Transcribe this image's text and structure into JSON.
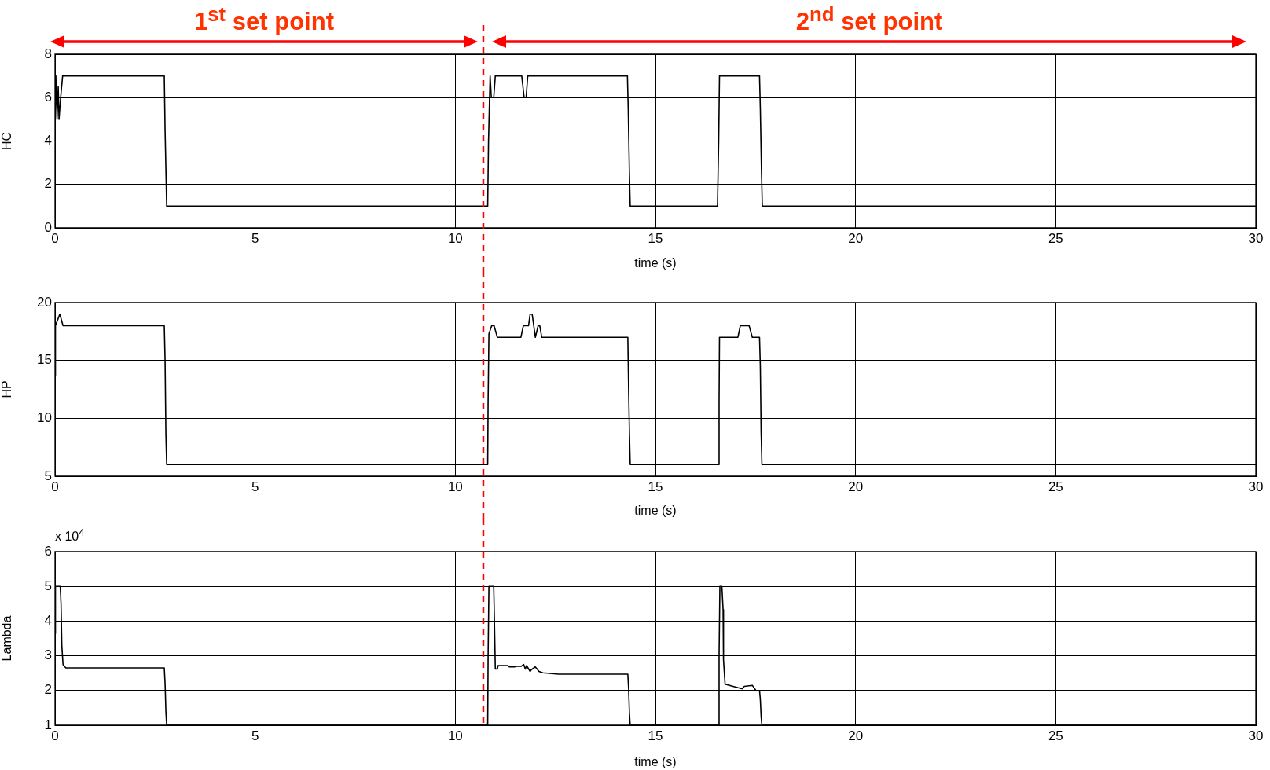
{
  "chart_data": [
    {
      "type": "line",
      "ylabel": "HC",
      "xlabel": "time (s)",
      "xlim": [
        0,
        30
      ],
      "xticks": [
        0,
        5,
        10,
        15,
        20,
        25,
        30
      ],
      "ylim": [
        0,
        8
      ],
      "yticks": [
        0,
        2,
        4,
        6,
        8
      ],
      "grid": true,
      "legend": false,
      "marker": "none",
      "line_style": "solid",
      "annotations": [
        "1$^{st}$ set point",
        "2$^{nd}$ set point"
      ],
      "ref_lines": [
        {
          "axis": "x",
          "value": 10.7,
          "color": "#ff0000",
          "line_style": "dashed"
        }
      ],
      "series": [
        {
          "color": "#000000",
          "x": [
            0,
            0.02,
            0.05,
            0.08,
            0.1,
            0.14,
            0.19,
            2.73,
            2.75,
            2.79,
            10.81,
            10.83,
            10.87,
            10.9,
            10.96,
            11.0,
            11.66,
            11.72,
            11.77,
            11.81,
            14.3,
            14.32,
            14.35,
            14.37,
            16.55,
            16.58,
            16.6,
            17.6,
            17.62,
            17.65,
            17.67,
            30
          ],
          "values": [
            5,
            7,
            5,
            6.5,
            5,
            6,
            7,
            7,
            4.5,
            1,
            1,
            4,
            7,
            6,
            6,
            7,
            7,
            6,
            6,
            7,
            7,
            5.5,
            2.5,
            1,
            1,
            4,
            7,
            7,
            5.5,
            2.5,
            1,
            1
          ]
        }
      ]
    },
    {
      "type": "line",
      "ylabel": "HP",
      "xlabel": "time (s)",
      "xlim": [
        0,
        30
      ],
      "xticks": [
        0,
        5,
        10,
        15,
        20,
        25,
        30
      ],
      "ylim": [
        5,
        20
      ],
      "yticks": [
        5,
        10,
        15,
        20
      ],
      "grid": true,
      "legend": false,
      "marker": "none",
      "line_style": "solid",
      "ref_lines": [
        {
          "axis": "x",
          "value": 10.7,
          "color": "#ff0000",
          "line_style": "dashed"
        }
      ],
      "series": [
        {
          "color": "#000000",
          "x": [
            0,
            0.01,
            0.12,
            0.2,
            2.73,
            2.75,
            2.77,
            2.79,
            10.81,
            10.82,
            10.84,
            10.91,
            10.97,
            11.05,
            11.64,
            11.7,
            11.83,
            11.87,
            11.92,
            12.0,
            12.07,
            12.11,
            12.16,
            14.31,
            14.33,
            14.35,
            14.37,
            16.58,
            16.59,
            16.6,
            17.06,
            17.12,
            17.34,
            17.42,
            17.6,
            17.62,
            17.64,
            17.66,
            30
          ],
          "values": [
            13.7,
            18,
            19,
            18,
            18,
            15,
            8.7,
            6,
            6,
            11.5,
            17.3,
            18,
            18,
            17,
            17,
            18,
            18,
            19,
            19,
            17,
            18,
            18,
            17,
            17,
            12.5,
            8.8,
            6,
            6,
            11.5,
            17,
            17,
            18,
            18,
            17,
            17,
            14.5,
            8.8,
            6,
            6
          ]
        }
      ]
    },
    {
      "type": "line",
      "ylabel": "Lambda",
      "xlabel": "time (s)",
      "xlim": [
        0,
        30
      ],
      "xticks": [
        0,
        5,
        10,
        15,
        20,
        25,
        30
      ],
      "ylim": [
        1,
        6
      ],
      "yticks": [
        1,
        2,
        3,
        4,
        5,
        6
      ],
      "grid": true,
      "legend": false,
      "marker": "none",
      "line_style": "solid",
      "annotations": [
        "x 10$^{4}$"
      ],
      "ref_lines": [
        {
          "axis": "x",
          "value": 10.7,
          "color": "#ff0000",
          "line_style": "dashed"
        }
      ],
      "series": [
        {
          "color": "#000000",
          "x": [
            0,
            0.01,
            0.13,
            0.15,
            0.17,
            0.2,
            0.27,
            2.73,
            2.75,
            2.77,
            2.79,
            10.81,
            10.82,
            10.84,
            10.96,
            10.98,
            11.0,
            11.05,
            11.07,
            11.31,
            11.35,
            11.48,
            11.52,
            11.65,
            11.71,
            11.75,
            11.78,
            11.87,
            11.9,
            12.0,
            12.09,
            12.19,
            12.58,
            14.31,
            14.33,
            14.35,
            14.37,
            16.58,
            16.59,
            16.61,
            16.66,
            16.69,
            16.7,
            16.74,
            17.03,
            17.16,
            17.22,
            17.42,
            17.51,
            17.6,
            17.62,
            17.64,
            17.66,
            30
          ],
          "values": [
            3.64,
            5,
            5,
            4.5,
            3.3,
            2.75,
            2.65,
            2.65,
            2.2,
            1.4,
            1,
            1,
            3,
            5,
            5,
            3.87,
            2.62,
            2.62,
            2.72,
            2.72,
            2.68,
            2.68,
            2.7,
            2.7,
            2.75,
            2.62,
            2.72,
            2.55,
            2.6,
            2.68,
            2.55,
            2.51,
            2.47,
            2.47,
            2.05,
            1.35,
            1,
            1,
            3,
            5,
            5,
            4.33,
            2.89,
            2.18,
            2.09,
            2.05,
            2.12,
            2.15,
            2,
            2,
            1.75,
            1.25,
            1,
            1
          ]
        }
      ]
    }
  ]
}
